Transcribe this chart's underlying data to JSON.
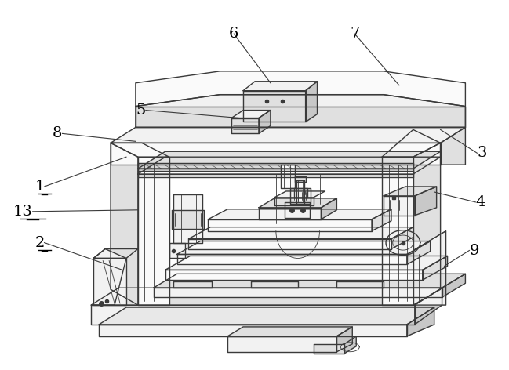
{
  "background_color": "#ffffff",
  "line_color": "#3a3a3a",
  "label_color": "#000000",
  "label_fontsize": 14,
  "figsize": [
    6.49,
    4.72
  ],
  "dpi": 100,
  "lw_main": 1.0,
  "lw_thin": 0.6,
  "fill_light": "#f2f2f2",
  "fill_mid": "#e0e0e0",
  "fill_dark": "#c8c8c8",
  "fill_white": "#fafafa"
}
